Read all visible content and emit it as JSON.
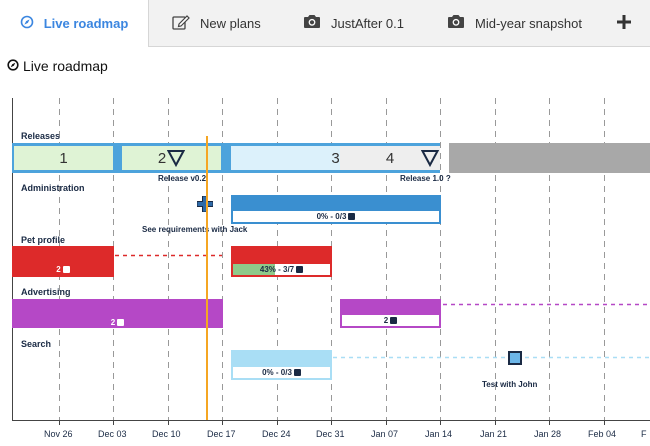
{
  "tabs": [
    {
      "label": "Live roadmap",
      "icon": "compass-icon",
      "active": true
    },
    {
      "label": "New plans",
      "icon": "edit-icon"
    },
    {
      "label": "JustAfter 0.1",
      "icon": "camera-icon"
    },
    {
      "label": "Mid-year snapshot",
      "icon": "camera-icon"
    }
  ],
  "add_tab_icon": "plus-icon",
  "page_title": "Live roadmap",
  "lanes": {
    "releases": "Releases",
    "administration": "Administration",
    "pet_profile": "Pet profile",
    "advertising": "Advertising",
    "search": "Search"
  },
  "releases": [
    {
      "label": "1"
    },
    {
      "label": "2",
      "milestone": "Release v0.2"
    },
    {
      "label": "3"
    },
    {
      "label": "4",
      "milestone": "Release 1.0 ?"
    }
  ],
  "bars": {
    "admin": {
      "label": "0% - 0/3",
      "progress": 0
    },
    "pet1": {
      "label": "2"
    },
    "pet2": {
      "label": "43% - 3/7",
      "progress": 0.43
    },
    "adv1": {
      "label": "2"
    },
    "adv2": {
      "label": "2"
    },
    "search": {
      "label": "0% - 0/3",
      "progress": 0
    }
  },
  "notes": {
    "admin": "See requirements with Jack",
    "search": "Test with John"
  },
  "axis": [
    "Nov 26",
    "Dec 03",
    "Dec 10",
    "Dec 17",
    "Dec 24",
    "Dec 31",
    "Jan 07",
    "Jan 14",
    "Jan 21",
    "Jan 28",
    "Feb 04",
    "F"
  ],
  "colors": {
    "accent": "#3b86e0",
    "release_blue": "#4da3dc",
    "admin_blue": "#3a8fd0",
    "pet_red": "#dd2a2a",
    "adv_purple": "#b548c6",
    "search_blue": "#a9def5",
    "today_line": "#f5a623"
  }
}
